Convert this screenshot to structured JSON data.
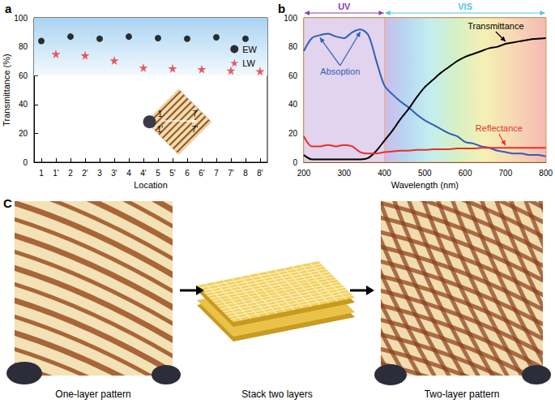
{
  "chart_data": [
    {
      "type": "scatter",
      "panel_label": "a",
      "xlabel": "Location",
      "ylabel": "Transmittance (%)",
      "categories": [
        "1",
        "1'",
        "2",
        "2'",
        "3",
        "3'",
        "4",
        "4'",
        "5",
        "5'",
        "6",
        "6'",
        "7",
        "7'",
        "8",
        "8'"
      ],
      "series": [
        {
          "name": "EW",
          "color": "#000000",
          "marker": "circle",
          "values": [
            84,
            null,
            87,
            null,
            85.5,
            null,
            87,
            null,
            86,
            null,
            85.5,
            null,
            86.5,
            null,
            85.5,
            null
          ]
        },
        {
          "name": "LW",
          "color": "#e8303a",
          "marker": "star",
          "values": [
            null,
            75,
            null,
            74,
            null,
            70.5,
            null,
            65.5,
            null,
            65,
            null,
            64.5,
            null,
            63.5,
            null,
            63
          ]
        }
      ],
      "ylim": [
        0,
        100
      ],
      "yticks": [
        0,
        20,
        40,
        60,
        80,
        100
      ],
      "shaded_band": [
        60,
        100
      ],
      "legend": "right",
      "inset_labels": [
        "1",
        "7",
        "1'",
        "7'"
      ]
    },
    {
      "type": "line",
      "panel_label": "b",
      "xlabel": "Wavelength (nm)",
      "x": [
        200,
        220,
        240,
        260,
        280,
        300,
        320,
        340,
        360,
        380,
        400,
        420,
        440,
        460,
        480,
        500,
        520,
        540,
        560,
        580,
        600,
        620,
        640,
        660,
        680,
        700,
        720,
        740,
        760,
        780,
        800
      ],
      "series": [
        {
          "name": "Absoption",
          "color": "#2e5fb5",
          "values": [
            77,
            86,
            88,
            89,
            87,
            86,
            90,
            92,
            88,
            70,
            53,
            47,
            42,
            38,
            33,
            29,
            26,
            23,
            20,
            18,
            14,
            13,
            11,
            10,
            8,
            7,
            6,
            6,
            5,
            5,
            4
          ]
        },
        {
          "name": "Transmittance",
          "color": "#000000",
          "values": [
            5,
            2,
            2,
            2,
            2,
            2,
            2,
            2,
            3,
            8,
            15,
            22,
            30,
            37,
            45,
            52,
            57,
            62,
            66,
            70,
            73,
            75,
            77,
            79,
            80,
            82,
            83,
            84,
            85,
            85.5,
            86
          ]
        },
        {
          "name": "Reflectance",
          "color": "#e8302a",
          "values": [
            18,
            11,
            11,
            12,
            11,
            12,
            11,
            7,
            6,
            6,
            7,
            7.5,
            8,
            8,
            8.5,
            8.5,
            9,
            9,
            9,
            9.5,
            9.5,
            9.5,
            10,
            10,
            10,
            10,
            10,
            10,
            10,
            10,
            10
          ]
        }
      ],
      "xlim": [
        200,
        800
      ],
      "xticks": [
        200,
        300,
        400,
        500,
        600,
        700,
        800
      ],
      "ylim": [
        0,
        100
      ],
      "yticks": [
        0,
        20,
        40,
        60,
        80,
        100
      ],
      "regions": [
        {
          "label": "UV",
          "from": 200,
          "to": 400,
          "color": "#8a3fb0"
        },
        {
          "label": "VIS",
          "from": 400,
          "to": 800,
          "color": "#4fc3e8"
        }
      ]
    }
  ],
  "panel_c": {
    "panel_label": "C",
    "captions": [
      "One-layer pattern",
      "Stack two layers",
      "Two-layer pattern"
    ]
  }
}
